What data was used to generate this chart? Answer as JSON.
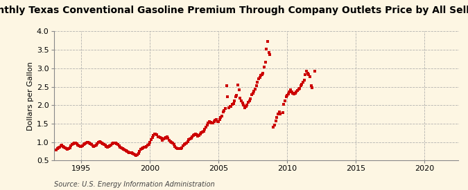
{
  "title": "Monthly Texas Conventional Gasoline Premium Through Company Outlets Price by All Sellers",
  "ylabel": "Dollars per Gallon",
  "source": "Source: U.S. Energy Information Administration",
  "xlim": [
    1993.0,
    2022.5
  ],
  "ylim": [
    0.5,
    4.0
  ],
  "yticks": [
    0.5,
    1.0,
    1.5,
    2.0,
    2.5,
    3.0,
    3.5,
    4.0
  ],
  "xticks": [
    1995,
    2000,
    2005,
    2010,
    2015,
    2020
  ],
  "background_color": "#fdf6e3",
  "marker_color": "#cc0000",
  "title_fontsize": 10,
  "label_fontsize": 8,
  "tick_fontsize": 8,
  "source_fontsize": 7,
  "data": [
    [
      1993.17,
      0.79
    ],
    [
      1993.25,
      0.82
    ],
    [
      1993.33,
      0.84
    ],
    [
      1993.42,
      0.87
    ],
    [
      1993.5,
      0.9
    ],
    [
      1993.58,
      0.91
    ],
    [
      1993.67,
      0.89
    ],
    [
      1993.75,
      0.87
    ],
    [
      1993.83,
      0.84
    ],
    [
      1993.92,
      0.82
    ],
    [
      1994.0,
      0.81
    ],
    [
      1994.08,
      0.83
    ],
    [
      1994.17,
      0.85
    ],
    [
      1994.25,
      0.9
    ],
    [
      1994.33,
      0.93
    ],
    [
      1994.42,
      0.95
    ],
    [
      1994.5,
      0.97
    ],
    [
      1994.58,
      0.97
    ],
    [
      1994.67,
      0.95
    ],
    [
      1994.75,
      0.92
    ],
    [
      1994.83,
      0.9
    ],
    [
      1994.92,
      0.88
    ],
    [
      1995.0,
      0.88
    ],
    [
      1995.08,
      0.9
    ],
    [
      1995.17,
      0.93
    ],
    [
      1995.25,
      0.95
    ],
    [
      1995.33,
      0.98
    ],
    [
      1995.42,
      1.0
    ],
    [
      1995.5,
      1.0
    ],
    [
      1995.58,
      0.98
    ],
    [
      1995.67,
      0.95
    ],
    [
      1995.75,
      0.93
    ],
    [
      1995.83,
      0.9
    ],
    [
      1995.92,
      0.88
    ],
    [
      1996.0,
      0.9
    ],
    [
      1996.08,
      0.92
    ],
    [
      1996.17,
      0.96
    ],
    [
      1996.25,
      1.0
    ],
    [
      1996.33,
      1.02
    ],
    [
      1996.42,
      1.0
    ],
    [
      1996.5,
      0.98
    ],
    [
      1996.58,
      0.96
    ],
    [
      1996.67,
      0.93
    ],
    [
      1996.75,
      0.91
    ],
    [
      1996.83,
      0.88
    ],
    [
      1996.92,
      0.87
    ],
    [
      1997.0,
      0.88
    ],
    [
      1997.08,
      0.9
    ],
    [
      1997.17,
      0.92
    ],
    [
      1997.25,
      0.95
    ],
    [
      1997.33,
      0.97
    ],
    [
      1997.42,
      0.98
    ],
    [
      1997.5,
      0.97
    ],
    [
      1997.58,
      0.96
    ],
    [
      1997.67,
      0.93
    ],
    [
      1997.75,
      0.9
    ],
    [
      1997.83,
      0.87
    ],
    [
      1997.92,
      0.84
    ],
    [
      1998.0,
      0.82
    ],
    [
      1998.08,
      0.8
    ],
    [
      1998.17,
      0.78
    ],
    [
      1998.25,
      0.76
    ],
    [
      1998.33,
      0.75
    ],
    [
      1998.42,
      0.73
    ],
    [
      1998.5,
      0.72
    ],
    [
      1998.58,
      0.72
    ],
    [
      1998.67,
      0.71
    ],
    [
      1998.75,
      0.7
    ],
    [
      1998.83,
      0.67
    ],
    [
      1998.92,
      0.65
    ],
    [
      1999.0,
      0.64
    ],
    [
      1999.08,
      0.65
    ],
    [
      1999.17,
      0.7
    ],
    [
      1999.25,
      0.75
    ],
    [
      1999.33,
      0.8
    ],
    [
      1999.42,
      0.83
    ],
    [
      1999.5,
      0.85
    ],
    [
      1999.58,
      0.87
    ],
    [
      1999.67,
      0.87
    ],
    [
      1999.75,
      0.88
    ],
    [
      1999.83,
      0.91
    ],
    [
      1999.92,
      0.94
    ],
    [
      2000.0,
      0.99
    ],
    [
      2000.08,
      1.06
    ],
    [
      2000.17,
      1.13
    ],
    [
      2000.25,
      1.19
    ],
    [
      2000.33,
      1.21
    ],
    [
      2000.42,
      1.22
    ],
    [
      2000.5,
      1.2
    ],
    [
      2000.58,
      1.15
    ],
    [
      2000.67,
      1.14
    ],
    [
      2000.75,
      1.12
    ],
    [
      2000.83,
      1.1
    ],
    [
      2000.92,
      1.05
    ],
    [
      2001.0,
      1.08
    ],
    [
      2001.08,
      1.1
    ],
    [
      2001.17,
      1.12
    ],
    [
      2001.25,
      1.14
    ],
    [
      2001.33,
      1.1
    ],
    [
      2001.42,
      1.05
    ],
    [
      2001.5,
      1.02
    ],
    [
      2001.58,
      1.0
    ],
    [
      2001.67,
      0.98
    ],
    [
      2001.75,
      0.93
    ],
    [
      2001.83,
      0.88
    ],
    [
      2001.92,
      0.84
    ],
    [
      2002.0,
      0.82
    ],
    [
      2002.08,
      0.82
    ],
    [
      2002.17,
      0.82
    ],
    [
      2002.25,
      0.83
    ],
    [
      2002.33,
      0.85
    ],
    [
      2002.42,
      0.9
    ],
    [
      2002.5,
      0.93
    ],
    [
      2002.58,
      0.96
    ],
    [
      2002.67,
      0.98
    ],
    [
      2002.75,
      1.01
    ],
    [
      2002.83,
      1.06
    ],
    [
      2002.92,
      1.09
    ],
    [
      2003.0,
      1.1
    ],
    [
      2003.08,
      1.15
    ],
    [
      2003.17,
      1.18
    ],
    [
      2003.25,
      1.2
    ],
    [
      2003.33,
      1.22
    ],
    [
      2003.42,
      1.2
    ],
    [
      2003.5,
      1.17
    ],
    [
      2003.58,
      1.19
    ],
    [
      2003.67,
      1.22
    ],
    [
      2003.75,
      1.25
    ],
    [
      2003.83,
      1.28
    ],
    [
      2003.92,
      1.3
    ],
    [
      2004.0,
      1.35
    ],
    [
      2004.08,
      1.4
    ],
    [
      2004.17,
      1.47
    ],
    [
      2004.25,
      1.51
    ],
    [
      2004.33,
      1.56
    ],
    [
      2004.42,
      1.53
    ],
    [
      2004.5,
      1.51
    ],
    [
      2004.58,
      1.52
    ],
    [
      2004.67,
      1.56
    ],
    [
      2004.75,
      1.59
    ],
    [
      2004.83,
      1.61
    ],
    [
      2004.92,
      1.56
    ],
    [
      2005.0,
      1.56
    ],
    [
      2005.08,
      1.61
    ],
    [
      2005.17,
      1.66
    ],
    [
      2005.25,
      1.71
    ],
    [
      2005.33,
      1.81
    ],
    [
      2005.42,
      1.86
    ],
    [
      2005.5,
      1.91
    ],
    [
      2005.58,
      2.52
    ],
    [
      2005.67,
      2.22
    ],
    [
      2005.75,
      1.93
    ],
    [
      2005.83,
      1.97
    ],
    [
      2005.92,
      1.96
    ],
    [
      2006.0,
      2.02
    ],
    [
      2006.08,
      2.05
    ],
    [
      2006.17,
      2.11
    ],
    [
      2006.25,
      2.22
    ],
    [
      2006.33,
      2.26
    ],
    [
      2006.42,
      2.55
    ],
    [
      2006.5,
      2.42
    ],
    [
      2006.58,
      2.2
    ],
    [
      2006.67,
      2.11
    ],
    [
      2006.75,
      2.06
    ],
    [
      2006.83,
      2.0
    ],
    [
      2006.92,
      1.93
    ],
    [
      2007.0,
      1.97
    ],
    [
      2007.08,
      2.01
    ],
    [
      2007.17,
      2.07
    ],
    [
      2007.25,
      2.12
    ],
    [
      2007.33,
      2.17
    ],
    [
      2007.42,
      2.28
    ],
    [
      2007.5,
      2.32
    ],
    [
      2007.58,
      2.38
    ],
    [
      2007.67,
      2.44
    ],
    [
      2007.75,
      2.52
    ],
    [
      2007.83,
      2.62
    ],
    [
      2007.92,
      2.72
    ],
    [
      2008.0,
      2.76
    ],
    [
      2008.08,
      2.8
    ],
    [
      2008.17,
      2.83
    ],
    [
      2008.25,
      2.87
    ],
    [
      2008.33,
      3.03
    ],
    [
      2008.42,
      3.17
    ],
    [
      2008.5,
      3.52
    ],
    [
      2008.58,
      3.72
    ],
    [
      2008.67,
      3.42
    ],
    [
      2008.75,
      3.38
    ],
    [
      2009.0,
      1.41
    ],
    [
      2009.08,
      1.46
    ],
    [
      2009.17,
      1.57
    ],
    [
      2009.25,
      1.66
    ],
    [
      2009.33,
      1.76
    ],
    [
      2009.42,
      1.82
    ],
    [
      2009.5,
      1.76
    ],
    [
      2009.67,
      1.8
    ],
    [
      2009.75,
      2.02
    ],
    [
      2009.83,
      2.12
    ],
    [
      2009.92,
      2.22
    ],
    [
      2010.0,
      2.27
    ],
    [
      2010.08,
      2.31
    ],
    [
      2010.17,
      2.36
    ],
    [
      2010.25,
      2.41
    ],
    [
      2010.33,
      2.36
    ],
    [
      2010.42,
      2.33
    ],
    [
      2010.5,
      2.31
    ],
    [
      2010.58,
      2.33
    ],
    [
      2010.67,
      2.36
    ],
    [
      2010.75,
      2.4
    ],
    [
      2010.83,
      2.43
    ],
    [
      2010.92,
      2.46
    ],
    [
      2011.0,
      2.52
    ],
    [
      2011.08,
      2.57
    ],
    [
      2011.17,
      2.63
    ],
    [
      2011.25,
      2.68
    ],
    [
      2011.33,
      2.82
    ],
    [
      2011.42,
      2.92
    ],
    [
      2011.5,
      2.87
    ],
    [
      2011.58,
      2.82
    ],
    [
      2011.67,
      2.77
    ],
    [
      2011.75,
      2.52
    ],
    [
      2011.83,
      2.47
    ],
    [
      2012.0,
      2.93
    ]
  ]
}
